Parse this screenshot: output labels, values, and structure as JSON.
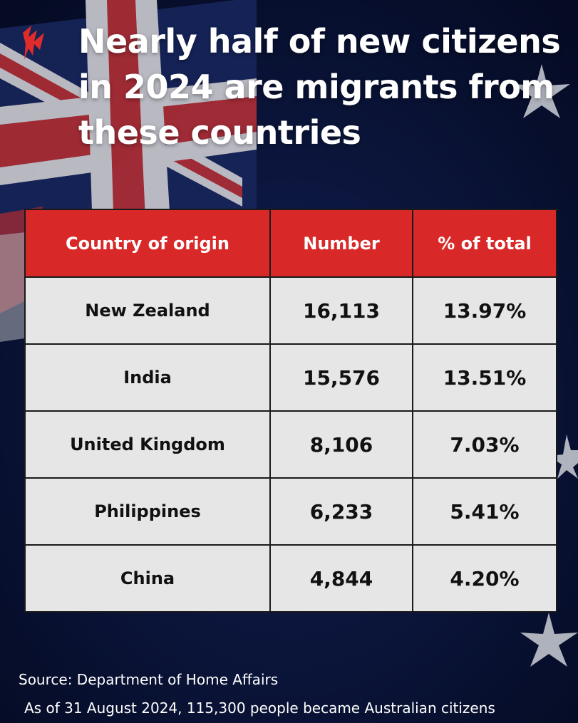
{
  "title": "Nearly half of new citizens in 2024 are migrants from these countries",
  "colors": {
    "header_bg": "#d92828",
    "cell_bg": "#e6e6e6",
    "background": "#0b1a45",
    "accent": "#e02b2b"
  },
  "chart_data": {
    "type": "table",
    "columns": [
      "Country of origin",
      "Number",
      "% of total"
    ],
    "rows": [
      {
        "country": "New Zealand",
        "number": "16,113",
        "percent": "13.97%"
      },
      {
        "country": "India",
        "number": "15,576",
        "percent": "13.51%"
      },
      {
        "country": "United Kingdom",
        "number": "8,106",
        "percent": "7.03%"
      },
      {
        "country": "Philippines",
        "number": "6,233",
        "percent": "5.41%"
      },
      {
        "country": "China",
        "number": "4,844",
        "percent": "4.20%"
      }
    ]
  },
  "source": "Source: Department of Home Affairs",
  "footnote": "As of 31 August 2024, 115,300 people became Australian citizens"
}
